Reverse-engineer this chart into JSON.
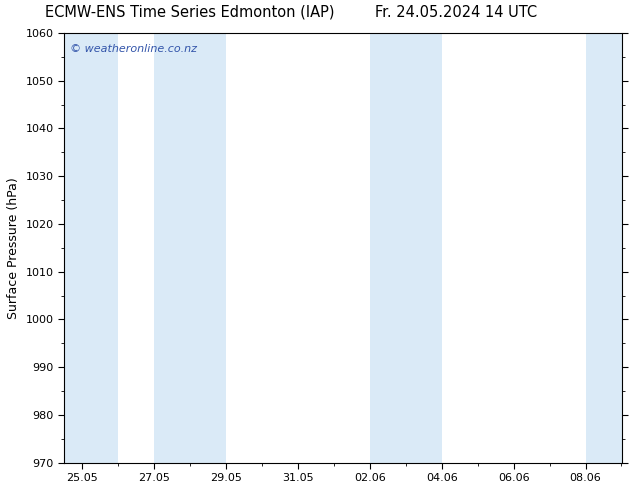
{
  "title_left": "ECMW-ENS Time Series Edmonton (IAP)",
  "title_right": "Fr. 24.05.2024 14 UTC",
  "ylabel": "Surface Pressure (hPa)",
  "ylim": [
    970,
    1060
  ],
  "ytick_interval": 10,
  "xtick_labels": [
    "25.05",
    "27.05",
    "29.05",
    "31.05",
    "02.06",
    "04.06",
    "06.06",
    "08.06"
  ],
  "xtick_positions": [
    0,
    2,
    4,
    6,
    8,
    10,
    12,
    14
  ],
  "xlim": [
    -0.5,
    15.0
  ],
  "shaded_bands": [
    [
      -0.5,
      1.0
    ],
    [
      2.0,
      4.0
    ],
    [
      8.0,
      10.0
    ],
    [
      14.0,
      15.0
    ]
  ],
  "band_color": "#daeaf7",
  "watermark": "© weatheronline.co.nz",
  "watermark_color": "#3355aa",
  "bg_color": "#ffffff",
  "axes_color": "#000000",
  "title_fontsize": 10.5,
  "label_fontsize": 9,
  "tick_fontsize": 8
}
